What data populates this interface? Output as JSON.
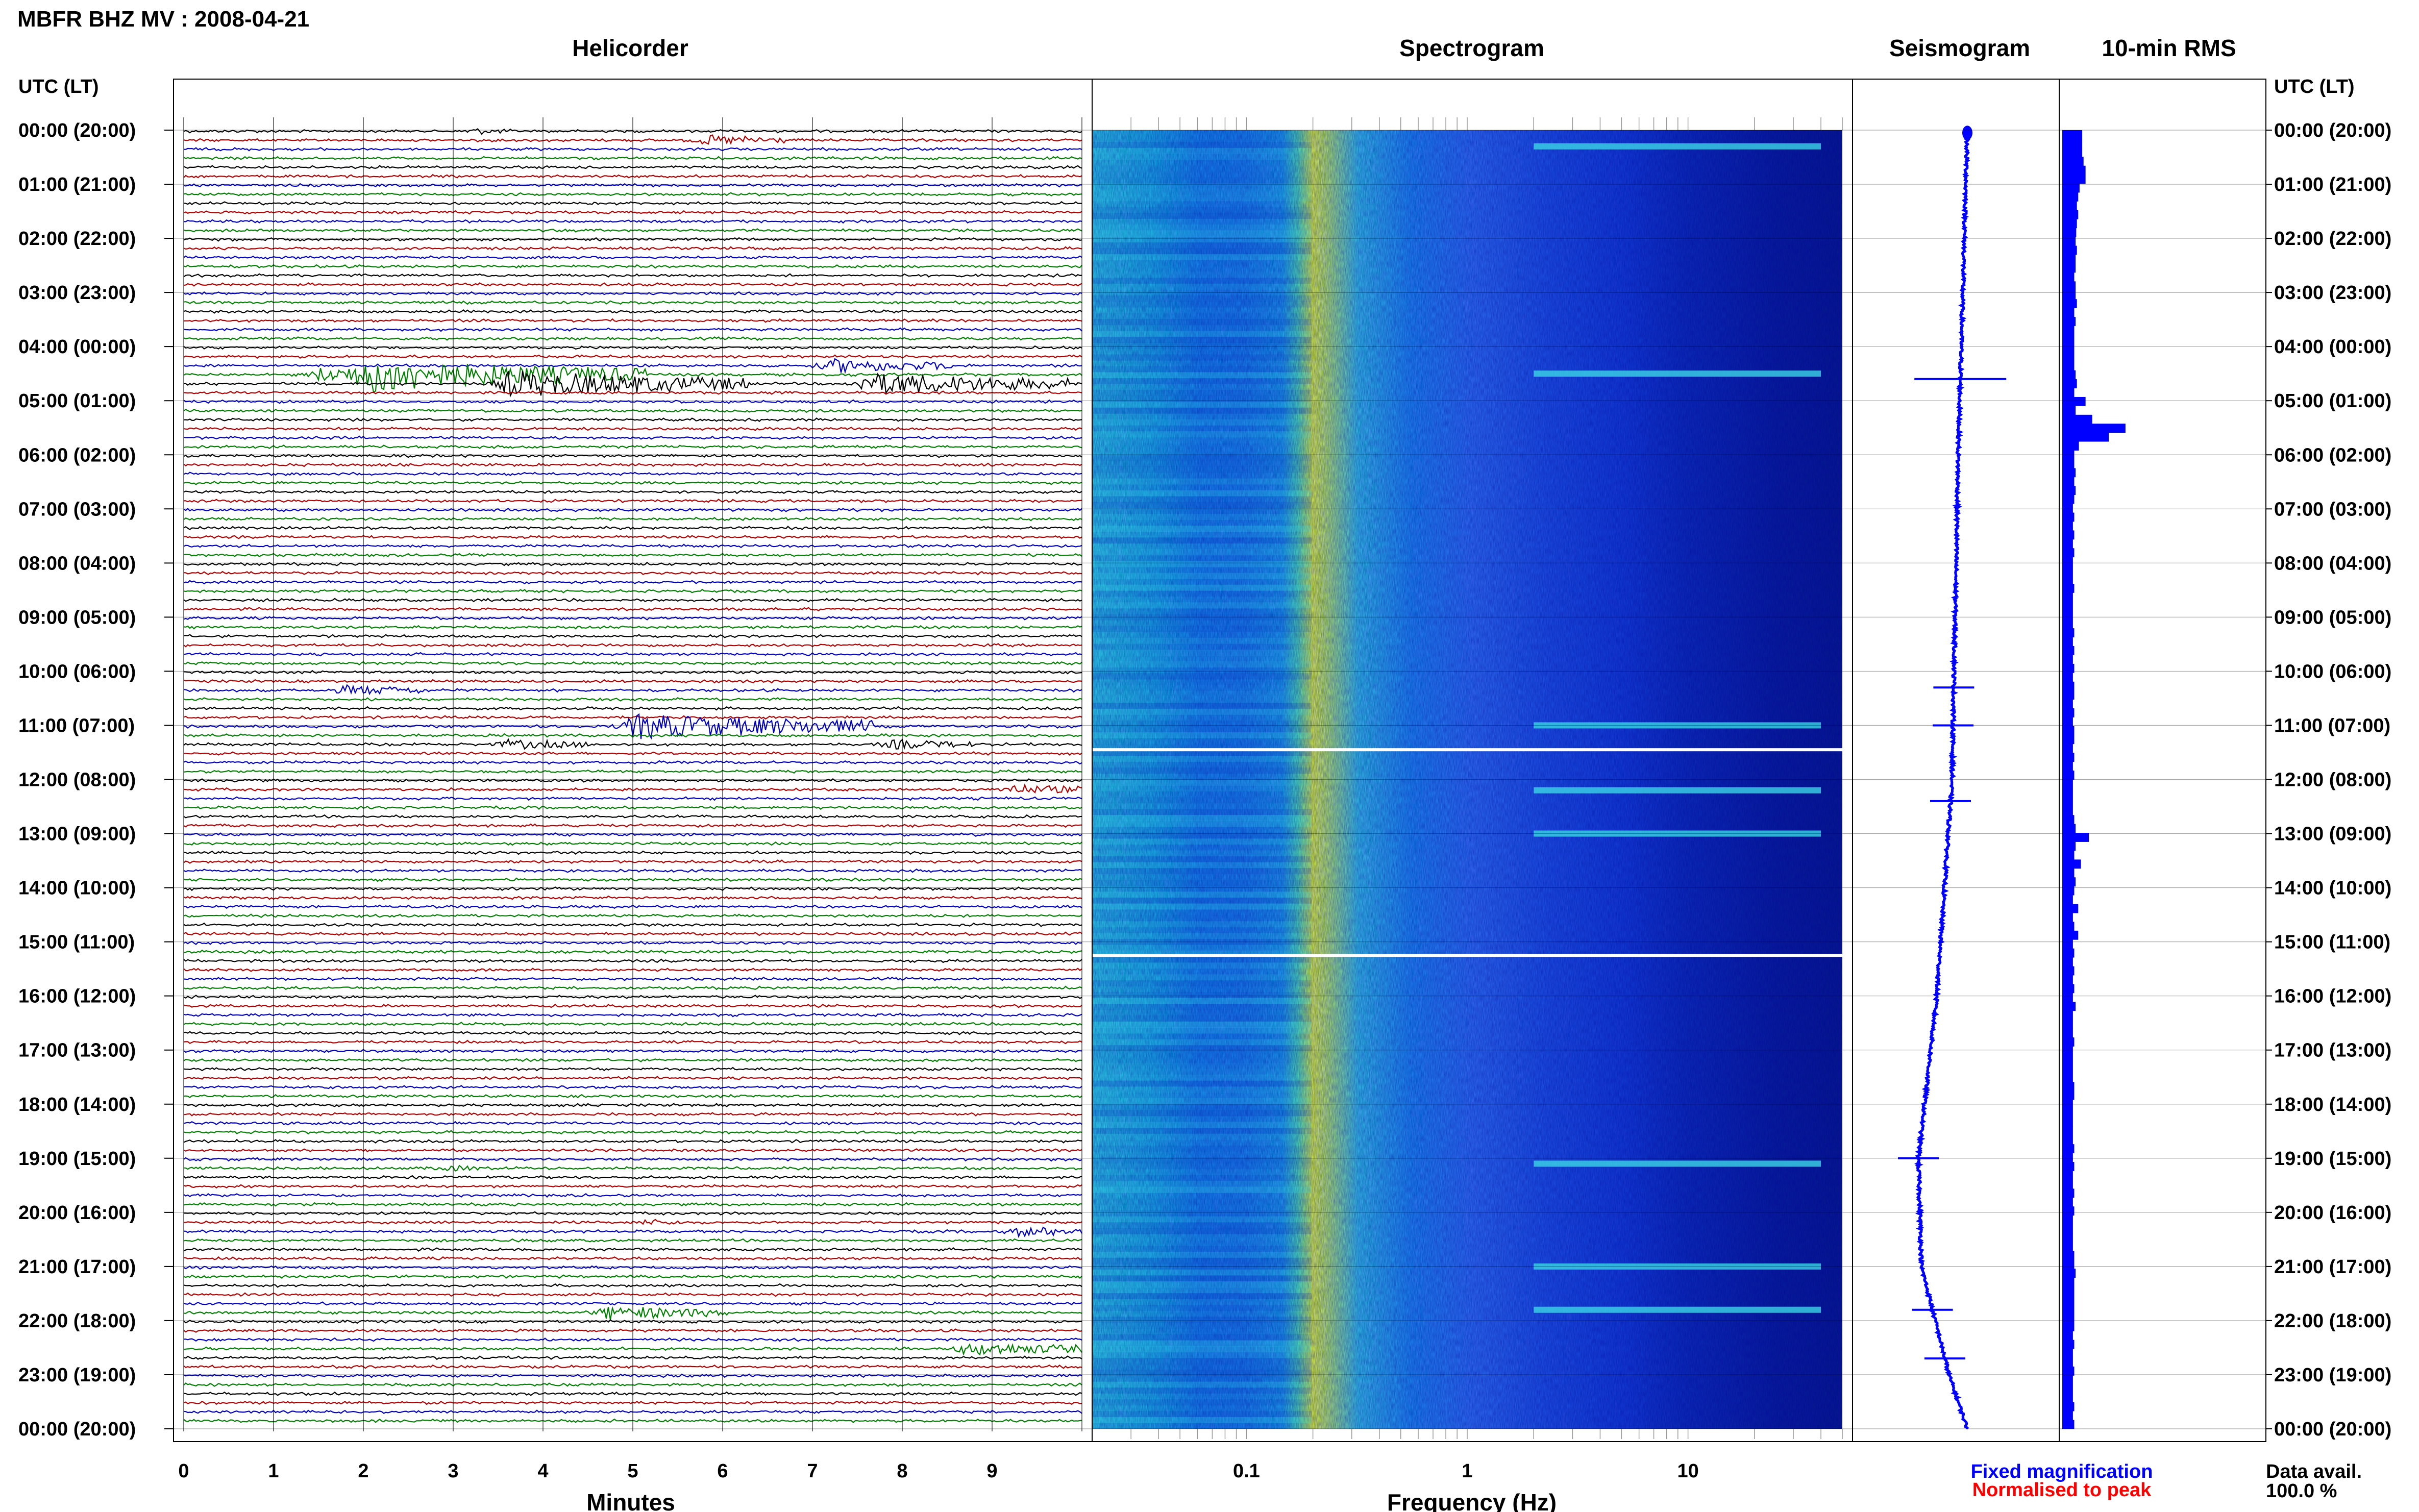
{
  "header": {
    "station_title": "MBFR BHZ MV : 2008-04-21"
  },
  "panels": {
    "helicorder": "Helicorder",
    "spectrogram": "Spectrogram",
    "seismogram": "Seismogram",
    "rms": "10-min RMS"
  },
  "time_axis": {
    "label": "UTC (LT)",
    "ticks": [
      "00:00 (20:00)",
      "01:00 (21:00)",
      "02:00 (22:00)",
      "03:00 (23:00)",
      "04:00 (00:00)",
      "05:00 (01:00)",
      "06:00 (02:00)",
      "07:00 (03:00)",
      "08:00 (04:00)",
      "09:00 (05:00)",
      "10:00 (06:00)",
      "11:00 (07:00)",
      "12:00 (08:00)",
      "13:00 (09:00)",
      "14:00 (10:00)",
      "15:00 (11:00)",
      "16:00 (12:00)",
      "17:00 (13:00)",
      "18:00 (14:00)",
      "19:00 (15:00)",
      "20:00 (16:00)",
      "21:00 (17:00)",
      "22:00 (18:00)",
      "23:00 (19:00)",
      "00:00 (20:00)"
    ]
  },
  "helicorder_axis": {
    "label": "Minutes",
    "ticks": [
      "0",
      "1",
      "2",
      "3",
      "4",
      "5",
      "6",
      "7",
      "8",
      "9"
    ]
  },
  "spectrogram_axis": {
    "label": "Frequency (Hz)",
    "ticks": [
      "0.1",
      "1",
      "10"
    ]
  },
  "legend": {
    "fixed": "Fixed magnification",
    "normalised": "Normalised to peak",
    "data_avail_label": "Data avail.",
    "data_avail_value": "100.0 %"
  },
  "colors": {
    "trace_cycle": [
      "#000000",
      "#b00000",
      "#0000c0",
      "#008000"
    ],
    "spectrogram_low": "#00007f",
    "spectrogram_mid": "#1e90ff",
    "spectrogram_peak": "#ffff00",
    "rms_bar": "#0000ff",
    "legend_fixed": "#0000ff",
    "legend_normalised": "#ff0000"
  },
  "chart_data": {
    "type": "heatmap",
    "title": "MBFR BHZ MV : 2008-04-21",
    "helicorder": {
      "xlabel": "Minutes",
      "xlim": [
        0,
        10
      ],
      "ylabel": "UTC (LT)",
      "ylim_hours": [
        0,
        24
      ],
      "line_minutes": 10,
      "events": [
        {
          "hour": 0.0,
          "minute": 3.2,
          "size": 1
        },
        {
          "hour": 0.2,
          "minute": 5.8,
          "size": 2
        },
        {
          "hour": 4.3,
          "minute": 7.2,
          "size": 3
        },
        {
          "hour": 4.5,
          "minute": 1.5,
          "size": 3
        },
        {
          "hour": 4.5,
          "minute": 2.0,
          "size": 7
        },
        {
          "hour": 4.7,
          "minute": 3.6,
          "size": 6
        },
        {
          "hour": 4.7,
          "minute": 7.6,
          "size": 5
        },
        {
          "hour": 10.3,
          "minute": 1.8,
          "size": 2
        },
        {
          "hour": 11.0,
          "minute": 5.0,
          "size": 6
        },
        {
          "hour": 11.3,
          "minute": 3.6,
          "size": 2
        },
        {
          "hour": 11.3,
          "minute": 7.9,
          "size": 2
        },
        {
          "hour": 12.2,
          "minute": 9.2,
          "size": 2
        },
        {
          "hour": 19.2,
          "minute": 2.9,
          "size": 1
        },
        {
          "hour": 20.1,
          "minute": 5.1,
          "size": 1
        },
        {
          "hour": 20.3,
          "minute": 9.3,
          "size": 2
        },
        {
          "hour": 21.8,
          "minute": 4.7,
          "size": 3
        },
        {
          "hour": 22.5,
          "minute": 8.7,
          "size": 3
        }
      ]
    },
    "spectrogram": {
      "xlabel": "Frequency (Hz)",
      "x_scale": "log",
      "xlim": [
        0.02,
        50
      ],
      "peak_frequency_hz": 0.22,
      "high_freq_bursts_hours": [
        0.3,
        4.5,
        11.0,
        12.2,
        13.0,
        19.1,
        21.0,
        21.8
      ]
    },
    "seismogram": {
      "drift": [
        {
          "hour": 0,
          "offset": 0.0
        },
        {
          "hour": 6,
          "offset": -0.03
        },
        {
          "hour": 12,
          "offset": -0.05
        },
        {
          "hour": 16,
          "offset": -0.1
        },
        {
          "hour": 19,
          "offset": -0.16
        },
        {
          "hour": 21,
          "offset": -0.15
        },
        {
          "hour": 23,
          "offset": -0.06
        },
        {
          "hour": 24,
          "offset": 0.0
        }
      ],
      "events_hours": [
        4.6,
        10.3,
        11.0,
        12.4,
        19.0,
        21.8,
        22.7
      ]
    },
    "rms": {
      "interval_minutes": 10,
      "levels": [
        0.3,
        0.3,
        0.3,
        0.32,
        0.35,
        0.35,
        0.26,
        0.24,
        0.22,
        0.24,
        0.22,
        0.21,
        0.2,
        0.22,
        0.2,
        0.2,
        0.18,
        0.2,
        0.2,
        0.22,
        0.18,
        0.2,
        0.18,
        0.18,
        0.18,
        0.18,
        0.18,
        0.2,
        0.22,
        0.18,
        0.35,
        0.2,
        0.45,
        0.95,
        0.7,
        0.25,
        0.18,
        0.18,
        0.2,
        0.18,
        0.2,
        0.18,
        0.16,
        0.18,
        0.16,
        0.18,
        0.16,
        0.18,
        0.16,
        0.16,
        0.16,
        0.18,
        0.16,
        0.16,
        0.16,
        0.16,
        0.18,
        0.16,
        0.18,
        0.16,
        0.18,
        0.16,
        0.18,
        0.18,
        0.16,
        0.18,
        0.16,
        0.18,
        0.18,
        0.16,
        0.18,
        0.16,
        0.18,
        0.16,
        0.16,
        0.16,
        0.16,
        0.18,
        0.2,
        0.4,
        0.2,
        0.18,
        0.28,
        0.18,
        0.2,
        0.18,
        0.16,
        0.24,
        0.16,
        0.18,
        0.24,
        0.16,
        0.18,
        0.16,
        0.18,
        0.16,
        0.18,
        0.16,
        0.2,
        0.16,
        0.16,
        0.16,
        0.18,
        0.16,
        0.16,
        0.16,
        0.16,
        0.18,
        0.18,
        0.16,
        0.16,
        0.16,
        0.16,
        0.16,
        0.18,
        0.16,
        0.18,
        0.16,
        0.16,
        0.18,
        0.16,
        0.18,
        0.16,
        0.16,
        0.16,
        0.16,
        0.18,
        0.18,
        0.2,
        0.18,
        0.18,
        0.18,
        0.18,
        0.18,
        0.18,
        0.16,
        0.18,
        0.16,
        0.16,
        0.18,
        0.16,
        0.16,
        0.16,
        0.18,
        0.16,
        0.18
      ]
    }
  }
}
